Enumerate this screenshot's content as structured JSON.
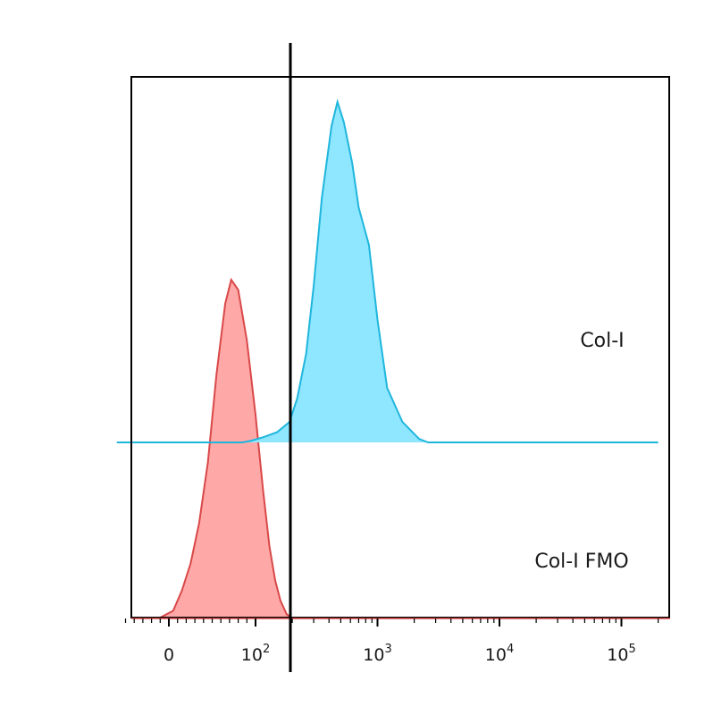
{
  "chart_data": {
    "type": "area",
    "subtype": "overlaid flow cytometry histograms (offset)",
    "title": "",
    "xlabel": "",
    "ylabel": "",
    "x_scale": "biexponential",
    "x_range": [
      -60,
      200000
    ],
    "x_tick_labels": [
      {
        "value": 0,
        "base": "0",
        "exp": ""
      },
      {
        "value": 100,
        "base": "10",
        "exp": "2"
      },
      {
        "value": 1000,
        "base": "10",
        "exp": "3"
      },
      {
        "value": 10000,
        "base": "10",
        "exp": "4"
      },
      {
        "value": 100000,
        "base": "10",
        "exp": "5"
      }
    ],
    "gate_x": 190,
    "grid": false,
    "legend": "none (series labelled inside the plot at right)",
    "series": [
      {
        "name": "Col-I FMO",
        "color_line": "#d94848",
        "color_fill": "#ffa8a8",
        "points": [
          [
            -10,
            0
          ],
          [
            5,
            0.02
          ],
          [
            15,
            0.08
          ],
          [
            25,
            0.16
          ],
          [
            35,
            0.28
          ],
          [
            45,
            0.46
          ],
          [
            55,
            0.72
          ],
          [
            65,
            0.93
          ],
          [
            72,
            1.0
          ],
          [
            80,
            0.97
          ],
          [
            90,
            0.82
          ],
          [
            100,
            0.6
          ],
          [
            115,
            0.38
          ],
          [
            130,
            0.21
          ],
          [
            145,
            0.11
          ],
          [
            160,
            0.05
          ],
          [
            180,
            0.01
          ],
          [
            195,
            0
          ]
        ]
      },
      {
        "name": "Col-I",
        "color_line": "#1fb6dc",
        "color_fill": "#8ee6ff",
        "points": [
          [
            -60,
            0
          ],
          [
            85,
            0
          ],
          [
            95,
            0.005
          ],
          [
            115,
            0.015
          ],
          [
            150,
            0.03
          ],
          [
            190,
            0.06
          ],
          [
            220,
            0.13
          ],
          [
            260,
            0.26
          ],
          [
            300,
            0.46
          ],
          [
            350,
            0.72
          ],
          [
            420,
            0.93
          ],
          [
            470,
            1.0
          ],
          [
            530,
            0.94
          ],
          [
            620,
            0.82
          ],
          [
            700,
            0.69
          ],
          [
            850,
            0.58
          ],
          [
            1000,
            0.36
          ],
          [
            1200,
            0.16
          ],
          [
            1600,
            0.06
          ],
          [
            2200,
            0.01
          ],
          [
            2600,
            0
          ],
          [
            10000,
            0
          ],
          [
            100000,
            0
          ],
          [
            200000,
            0
          ]
        ]
      }
    ]
  }
}
